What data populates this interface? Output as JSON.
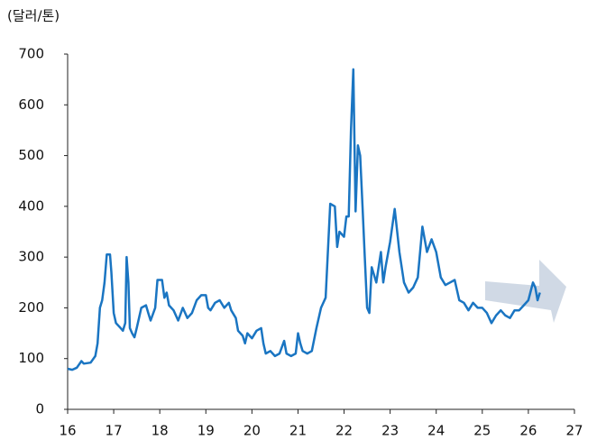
{
  "chart_data": {
    "type": "line",
    "y_label": "(달러/톤)",
    "color": "#1a75c2",
    "x": [
      16.0,
      16.1,
      16.2,
      16.3,
      16.35,
      16.5,
      16.6,
      16.65,
      16.7,
      16.75,
      16.8,
      16.85,
      16.92,
      16.95,
      17.0,
      17.05,
      17.15,
      17.2,
      17.25,
      17.28,
      17.32,
      17.35,
      17.4,
      17.45,
      17.5,
      17.6,
      17.7,
      17.75,
      17.8,
      17.9,
      17.95,
      18.05,
      18.1,
      18.15,
      18.2,
      18.3,
      18.4,
      18.5,
      18.6,
      18.7,
      18.8,
      18.9,
      19.0,
      19.05,
      19.1,
      19.2,
      19.3,
      19.4,
      19.5,
      19.55,
      19.65,
      19.7,
      19.8,
      19.85,
      19.9,
      20.0,
      20.1,
      20.2,
      20.25,
      20.3,
      20.4,
      20.5,
      20.6,
      20.7,
      20.75,
      20.85,
      20.95,
      21.0,
      21.05,
      21.1,
      21.2,
      21.3,
      21.4,
      21.5,
      21.6,
      21.7,
      21.8,
      21.85,
      21.9,
      22.0,
      22.05,
      22.1,
      22.15,
      22.2,
      22.25,
      22.3,
      22.35,
      22.4,
      22.45,
      22.5,
      22.55,
      22.6,
      22.7,
      22.8,
      22.85,
      22.9,
      23.0,
      23.1,
      23.2,
      23.3,
      23.4,
      23.5,
      23.6,
      23.7,
      23.8,
      23.9,
      24.0,
      24.1,
      24.2,
      24.3,
      24.4,
      24.5,
      24.6,
      24.7,
      24.8,
      24.9,
      25.0,
      25.1,
      25.2,
      25.3,
      25.4,
      25.5,
      25.6,
      25.7,
      25.8,
      25.9,
      26.0,
      26.1,
      26.15,
      26.2,
      26.25
    ],
    "values": [
      80,
      78,
      82,
      95,
      90,
      92,
      105,
      130,
      200,
      215,
      250,
      305,
      305,
      270,
      190,
      170,
      160,
      155,
      170,
      300,
      250,
      160,
      150,
      142,
      160,
      200,
      205,
      190,
      175,
      200,
      255,
      255,
      220,
      230,
      205,
      195,
      175,
      200,
      180,
      190,
      215,
      225,
      225,
      200,
      195,
      210,
      215,
      200,
      210,
      195,
      180,
      155,
      145,
      130,
      150,
      140,
      155,
      160,
      130,
      110,
      115,
      105,
      110,
      135,
      110,
      105,
      110,
      150,
      130,
      115,
      110,
      115,
      160,
      200,
      220,
      405,
      400,
      320,
      350,
      340,
      380,
      380,
      550,
      670,
      390,
      520,
      500,
      400,
      300,
      200,
      190,
      280,
      250,
      310,
      250,
      280,
      330,
      395,
      310,
      250,
      230,
      240,
      260,
      360,
      310,
      335,
      310,
      260,
      245,
      250,
      255,
      215,
      210,
      195,
      210,
      200,
      200,
      190,
      170,
      185,
      195,
      185,
      180,
      195,
      195,
      205,
      215,
      250,
      240,
      215,
      230
    ],
    "xlim": [
      16,
      27
    ],
    "xticks": [
      16,
      17,
      18,
      19,
      20,
      21,
      22,
      23,
      24,
      25,
      26,
      27
    ],
    "ylim": [
      0,
      700
    ],
    "yticks": [
      0,
      100,
      200,
      300,
      400,
      500,
      600,
      700
    ]
  }
}
